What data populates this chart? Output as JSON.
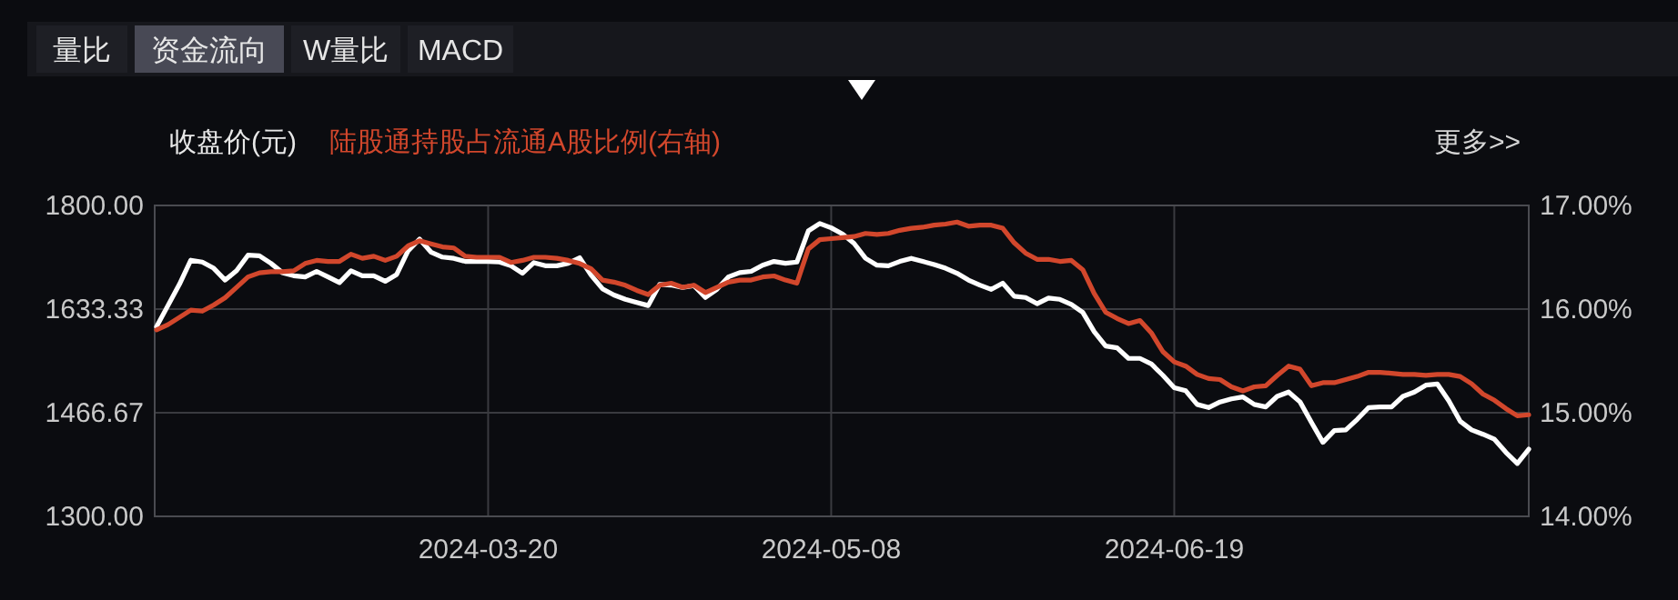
{
  "chart_data": {
    "type": "line",
    "categories": [
      null,
      null,
      null,
      null,
      null,
      null,
      null,
      null,
      null,
      null,
      null,
      null,
      null,
      null,
      null,
      null,
      null,
      null,
      null,
      null,
      null,
      null,
      null,
      null,
      null,
      null,
      null,
      null,
      null,
      "2024-03-20",
      null,
      null,
      null,
      null,
      null,
      null,
      null,
      null,
      null,
      null,
      null,
      null,
      null,
      null,
      null,
      null,
      null,
      null,
      null,
      null,
      null,
      null,
      null,
      null,
      null,
      null,
      null,
      null,
      null,
      "2024-05-08",
      null,
      null,
      null,
      null,
      null,
      null,
      null,
      null,
      null,
      null,
      null,
      null,
      null,
      null,
      null,
      null,
      null,
      null,
      null,
      null,
      null,
      null,
      null,
      null,
      null,
      null,
      null,
      null,
      null,
      "2024-06-19",
      null,
      null,
      null,
      null,
      null,
      null,
      null,
      null,
      null,
      null,
      null,
      null,
      null,
      null,
      null,
      null,
      null,
      null,
      null,
      null,
      null,
      null,
      null,
      null,
      null,
      null,
      null,
      null,
      null,
      null,
      null
    ],
    "series": [
      {
        "name": "收盘价(元)",
        "color": "#ffffff",
        "values": [
          1605,
          1639,
          1673,
          1712,
          1709,
          1699,
          1680,
          1695,
          1720,
          1719,
          1707,
          1692,
          1687,
          1685,
          1694,
          1685,
          1676,
          1695,
          1687,
          1687,
          1678,
          1689,
          1727,
          1746,
          1725,
          1717,
          1715,
          1710,
          1710,
          1710,
          1709,
          1703,
          1691,
          1708,
          1703,
          1703,
          1707,
          1716,
          1688,
          1666,
          1656,
          1649,
          1644,
          1639,
          1673,
          1672,
          1668,
          1671,
          1652,
          1665,
          1685,
          1692,
          1694,
          1704,
          1710,
          1707,
          1709,
          1759,
          1771,
          1764,
          1754,
          1739,
          1715,
          1704,
          1703,
          1710,
          1715,
          1710,
          1705,
          1699,
          1691,
          1680,
          1672,
          1665,
          1675,
          1654,
          1652,
          1642,
          1651,
          1649,
          1641,
          1628,
          1597,
          1574,
          1571,
          1554,
          1554,
          1545,
          1527,
          1507,
          1502,
          1480,
          1475,
          1484,
          1489,
          1492,
          1480,
          1476,
          1493,
          1500,
          1484,
          1451,
          1419,
          1438,
          1439,
          1456,
          1475,
          1476,
          1476,
          1493,
          1500,
          1511,
          1513,
          1486,
          1453,
          1439,
          1432,
          1424,
          1403,
          1385,
          1408
        ]
      },
      {
        "name": "陆股通持股占流通A股比例(右轴)",
        "color": "#d2472c",
        "axis": "y2",
        "values": [
          15.8,
          15.85,
          15.92,
          15.99,
          15.98,
          16.04,
          16.11,
          16.21,
          16.31,
          16.35,
          16.36,
          16.36,
          16.37,
          16.44,
          16.47,
          16.46,
          16.46,
          16.53,
          16.49,
          16.51,
          16.47,
          16.51,
          16.61,
          16.66,
          16.63,
          16.6,
          16.59,
          16.51,
          16.5,
          16.5,
          16.5,
          16.45,
          16.47,
          16.5,
          16.5,
          16.49,
          16.47,
          16.44,
          16.39,
          16.28,
          16.26,
          16.23,
          16.18,
          16.14,
          16.23,
          16.25,
          16.21,
          16.23,
          16.16,
          16.21,
          16.26,
          16.28,
          16.28,
          16.31,
          16.32,
          16.28,
          16.25,
          16.58,
          16.67,
          16.68,
          16.69,
          16.7,
          16.73,
          16.72,
          16.73,
          16.76,
          16.78,
          16.79,
          16.81,
          16.82,
          16.84,
          16.8,
          16.81,
          16.81,
          16.78,
          16.64,
          16.54,
          16.48,
          16.48,
          16.46,
          16.47,
          16.38,
          16.15,
          15.97,
          15.91,
          15.86,
          15.89,
          15.77,
          15.59,
          15.49,
          15.45,
          15.37,
          15.33,
          15.32,
          15.25,
          15.21,
          15.25,
          15.26,
          15.36,
          15.45,
          15.42,
          15.26,
          15.29,
          15.29,
          15.32,
          15.35,
          15.39,
          15.39,
          15.38,
          15.37,
          15.37,
          15.36,
          15.37,
          15.37,
          15.35,
          15.28,
          15.18,
          15.12,
          15.04,
          14.97,
          14.98
        ]
      }
    ],
    "ylim": [
      1300,
      1800
    ],
    "yticks": [
      {
        "value": 1300,
        "label": "1300.00"
      },
      {
        "value": 1466.67,
        "label": "1466.67"
      },
      {
        "value": 1633.33,
        "label": "1633.33"
      },
      {
        "value": 1800,
        "label": "1800.00"
      }
    ],
    "y2lim": [
      14,
      17
    ],
    "y2ticks": [
      {
        "value": 14,
        "label": "14.00%"
      },
      {
        "value": 15,
        "label": "15.00%"
      },
      {
        "value": 16,
        "label": "16.00%"
      },
      {
        "value": 17,
        "label": "17.00%"
      }
    ],
    "grid": true,
    "legend": "top left",
    "annotations": [
      "量比",
      "资金流向",
      "W量比",
      "MACD",
      "更多>>"
    ]
  }
}
